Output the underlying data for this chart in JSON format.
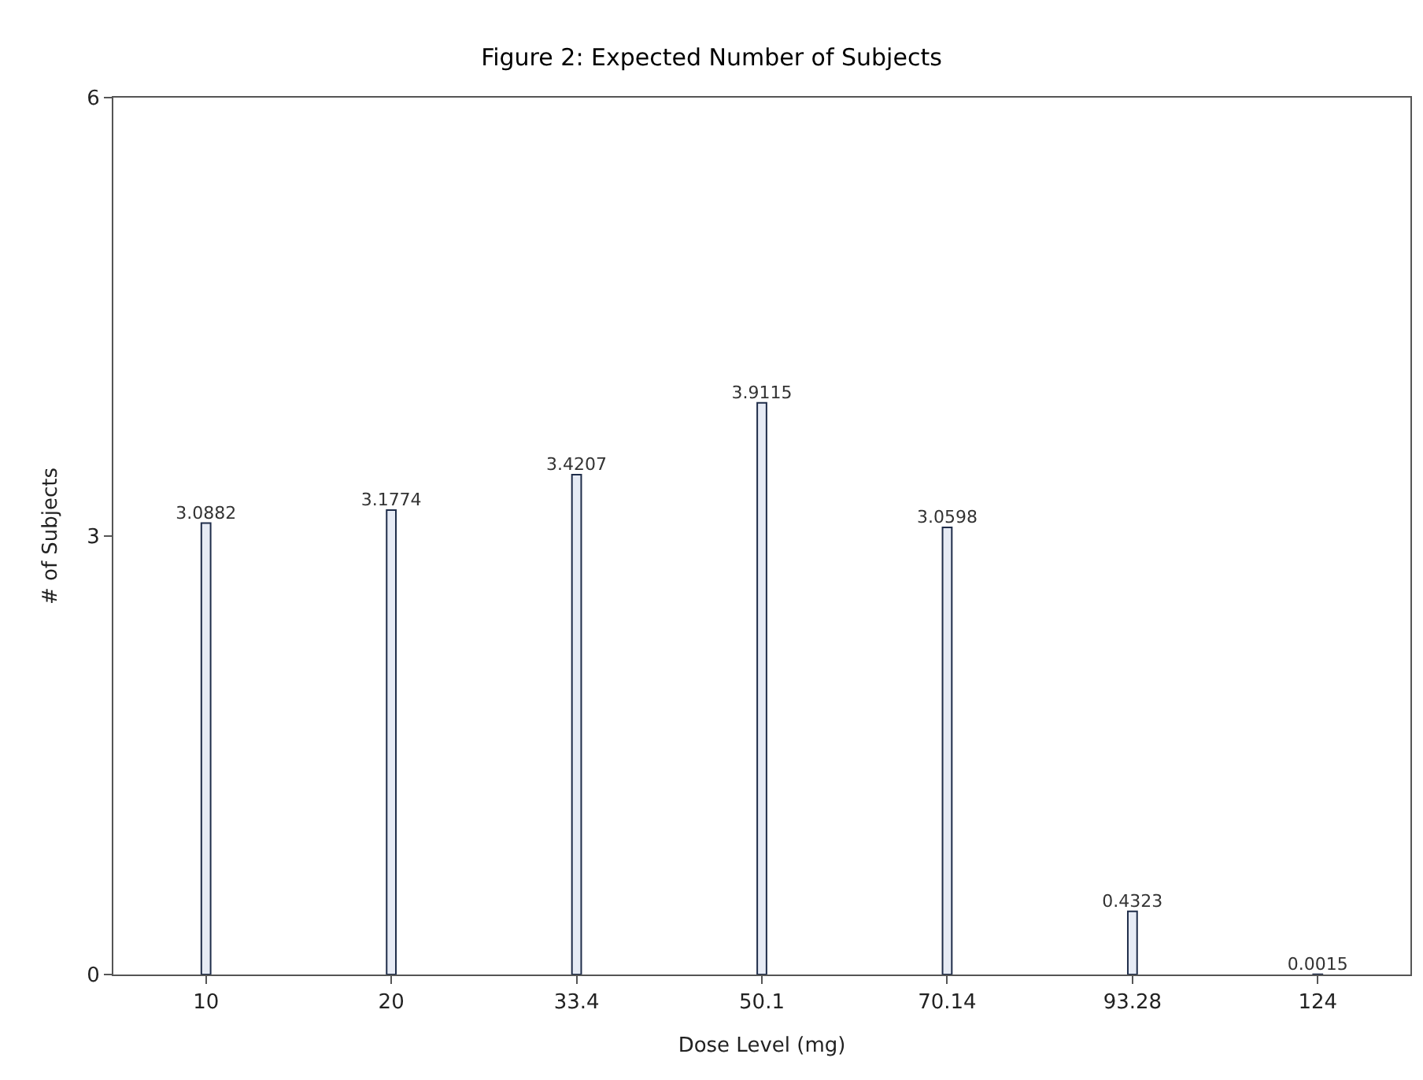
{
  "chart_data": {
    "type": "bar",
    "title": "Figure 2: Expected Number of Subjects",
    "xlabel": "Dose Level (mg)",
    "ylabel": "# of Subjects",
    "categories": [
      "10",
      "20",
      "33.4",
      "50.1",
      "70.14",
      "93.28",
      "124"
    ],
    "values": [
      3.0882,
      3.1774,
      3.4207,
      3.9115,
      3.0598,
      0.4323,
      0.0015
    ],
    "color": "#e6ebf5",
    "ylim": [
      0,
      6
    ],
    "yticks": [
      0,
      3,
      6
    ],
    "data_labels": true
  }
}
